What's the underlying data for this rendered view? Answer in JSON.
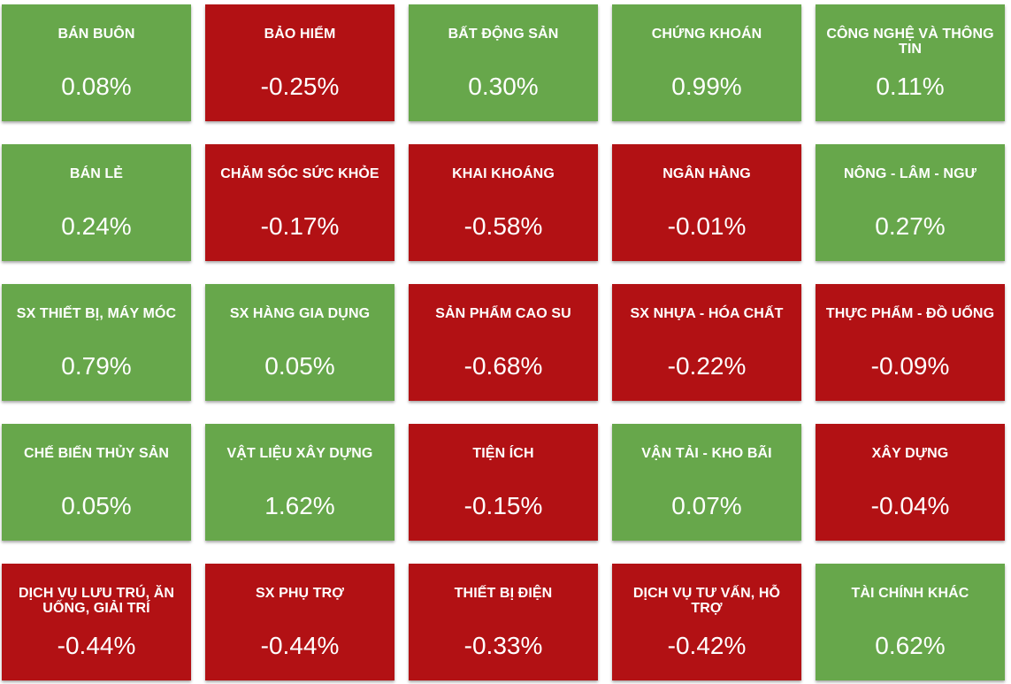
{
  "colors": {
    "positive": "#67a74b",
    "negative": "#b21114",
    "text": "#ffffff"
  },
  "sectors": [
    {
      "name": "BÁN BUÔN",
      "change": "0.08%"
    },
    {
      "name": "BẢO HIỂM",
      "change": "-0.25%"
    },
    {
      "name": "BẤT ĐỘNG SẢN",
      "change": "0.30%"
    },
    {
      "name": "CHỨNG KHOÁN",
      "change": "0.99%"
    },
    {
      "name": "CÔNG NGHỆ VÀ THÔNG TIN",
      "change": "0.11%"
    },
    {
      "name": "BÁN LẺ",
      "change": "0.24%"
    },
    {
      "name": "CHĂM SÓC SỨC KHỎE",
      "change": "-0.17%"
    },
    {
      "name": "KHAI KHOÁNG",
      "change": "-0.58%"
    },
    {
      "name": "NGÂN HÀNG",
      "change": "-0.01%"
    },
    {
      "name": "NÔNG - LÂM - NGƯ",
      "change": "0.27%"
    },
    {
      "name": "SX THIẾT BỊ, MÁY MÓC",
      "change": "0.79%"
    },
    {
      "name": "SX HÀNG GIA DỤNG",
      "change": "0.05%"
    },
    {
      "name": "SẢN PHẨM CAO SU",
      "change": "-0.68%"
    },
    {
      "name": "SX NHỰA - HÓA CHẤT",
      "change": "-0.22%"
    },
    {
      "name": "THỰC PHẨM - ĐỒ UỐNG",
      "change": "-0.09%"
    },
    {
      "name": "CHẾ BIẾN THỦY SẢN",
      "change": "0.05%"
    },
    {
      "name": "VẬT LIỆU XÂY DỰNG",
      "change": "1.62%"
    },
    {
      "name": "TIỆN ÍCH",
      "change": "-0.15%"
    },
    {
      "name": "VẬN TẢI - KHO BÃI",
      "change": "0.07%"
    },
    {
      "name": "XÂY DỰNG",
      "change": "-0.04%"
    },
    {
      "name": "DỊCH VỤ LƯU TRÚ, ĂN UỐNG, GIẢI TRÍ",
      "change": "-0.44%"
    },
    {
      "name": "SX PHỤ TRỢ",
      "change": "-0.44%"
    },
    {
      "name": "THIẾT BỊ ĐIỆN",
      "change": "-0.33%"
    },
    {
      "name": "DỊCH VỤ TƯ VẤN, HỖ TRỢ",
      "change": "-0.42%"
    },
    {
      "name": "TÀI CHÍNH KHÁC",
      "change": "0.62%"
    }
  ]
}
